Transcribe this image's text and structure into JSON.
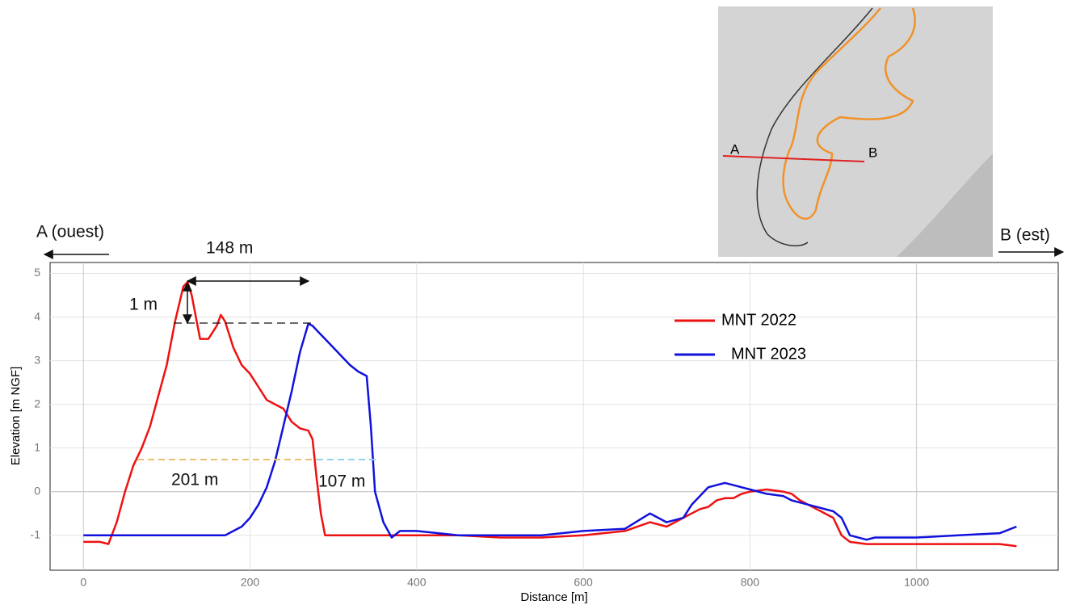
{
  "chart_data": {
    "type": "line",
    "x_label": "Distance [m]",
    "y_label": "Elevation [m NGF]",
    "x": [
      0,
      20,
      30,
      40,
      50,
      60,
      70,
      80,
      90,
      100,
      110,
      120,
      125,
      130,
      140,
      150,
      160,
      165,
      170,
      180,
      190,
      200,
      210,
      220,
      230,
      240,
      250,
      260,
      270,
      275,
      280,
      285,
      290,
      300,
      310,
      320,
      330,
      340,
      345,
      350,
      360,
      370,
      380,
      400,
      450,
      500,
      550,
      600,
      650,
      680,
      700,
      720,
      730,
      740,
      750,
      760,
      770,
      780,
      790,
      800,
      820,
      840,
      850,
      860,
      880,
      900,
      910,
      920,
      940,
      950,
      1000,
      1050,
      1100,
      1120
    ],
    "series": [
      {
        "name": "MNT 2022",
        "color": "#ee1111",
        "values": [
          -1.15,
          -1.15,
          -1.2,
          -0.7,
          0,
          0.6,
          1.0,
          1.5,
          2.2,
          2.9,
          3.9,
          4.7,
          4.8,
          4.5,
          3.5,
          3.5,
          3.8,
          4.05,
          3.9,
          3.3,
          2.9,
          2.7,
          2.4,
          2.1,
          2.0,
          1.9,
          1.6,
          1.45,
          1.4,
          1.2,
          0.3,
          -0.5,
          -1.0,
          -1.0,
          -1.0,
          -1.0,
          -1.0,
          -1.0,
          -1.0,
          -1.0,
          -1.0,
          -1.0,
          -1.0,
          -1.0,
          -1.0,
          -1.05,
          -1.05,
          -1.0,
          -0.9,
          -0.7,
          -0.8,
          -0.6,
          -0.5,
          -0.4,
          -0.35,
          -0.2,
          -0.15,
          -0.15,
          -0.05,
          0,
          0.05,
          0,
          -0.05,
          -0.2,
          -0.4,
          -0.6,
          -1.0,
          -1.15,
          -1.2,
          -1.2,
          -1.2,
          -1.2,
          -1.2,
          -1.25
        ]
      },
      {
        "name": "MNT 2023",
        "color": "#1111dd",
        "values": [
          -1.0,
          -1.0,
          -1.0,
          -1.0,
          -1.0,
          -1.0,
          -1.0,
          -1.0,
          -1.0,
          -1.0,
          -1.0,
          -1.0,
          -1.0,
          -1.0,
          -1.0,
          -1.0,
          -1.0,
          -1.0,
          -1.0,
          -0.9,
          -0.8,
          -0.6,
          -0.3,
          0.1,
          0.7,
          1.5,
          2.3,
          3.2,
          3.85,
          3.8,
          3.7,
          3.6,
          3.5,
          3.3,
          3.1,
          2.9,
          2.75,
          2.65,
          1.5,
          0,
          -0.7,
          -1.05,
          -0.9,
          -0.9,
          -1.0,
          -1.0,
          -1.0,
          -0.9,
          -0.85,
          -0.5,
          -0.7,
          -0.6,
          -0.3,
          -0.1,
          0.1,
          0.15,
          0.2,
          0.15,
          0.1,
          0.05,
          -0.05,
          -0.1,
          -0.2,
          -0.25,
          -0.35,
          -0.45,
          -0.6,
          -1.0,
          -1.1,
          -1.05,
          -1.05,
          -1.0,
          -0.95,
          -0.8
        ]
      }
    ],
    "xlim": [
      -40,
      1170
    ],
    "ylim": [
      -1.8,
      5.25
    ],
    "xticks": [
      0,
      200,
      400,
      600,
      800,
      1000
    ],
    "yticks": [
      -1,
      0,
      1,
      2,
      3,
      4,
      5
    ],
    "grid": true,
    "legend": "upper right",
    "annotations": [
      "148 m",
      "1 m",
      "201 m",
      "107 m",
      "A  (ouest)",
      "B (est)"
    ],
    "map_labels": [
      "A",
      "B"
    ]
  }
}
